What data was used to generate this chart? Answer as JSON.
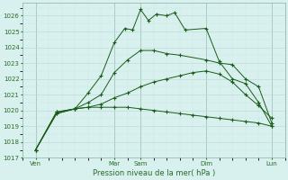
{
  "title": "",
  "xlabel": "Pression niveau de la mer( hPa )",
  "bg_color": "#d8f0ee",
  "grid_major_color": "#c0dcd8",
  "grid_minor_color": "#d0e8e4",
  "line_color": "#1a5c1a",
  "ylim": [
    1017,
    1026.8
  ],
  "yticks": [
    1017,
    1018,
    1019,
    1020,
    1021,
    1022,
    1023,
    1024,
    1025,
    1026
  ],
  "xlim": [
    0,
    10.0
  ],
  "xtick_labels": [
    "Ven",
    "Mar",
    "Sam",
    "Dim",
    "Lun"
  ],
  "xtick_pos": [
    0.5,
    3.5,
    4.5,
    7.0,
    9.5
  ],
  "vlines_x": [
    0.5,
    3.5,
    4.5,
    7.0,
    9.5
  ],
  "lines": [
    {
      "x": [
        0.5,
        1.3,
        2.0,
        2.5,
        3.0,
        3.5,
        3.9,
        4.2,
        4.5,
        4.8,
        5.1,
        5.5,
        5.8,
        6.2,
        7.0,
        7.5,
        8.0,
        8.5,
        9.0,
        9.5
      ],
      "y": [
        1017.5,
        1019.9,
        1020.1,
        1021.1,
        1022.2,
        1024.3,
        1025.2,
        1025.1,
        1026.4,
        1025.7,
        1026.1,
        1026.0,
        1026.2,
        1025.1,
        1025.2,
        1023.1,
        1022.0,
        1021.7,
        1020.5,
        1019.0
      ]
    },
    {
      "x": [
        0.5,
        1.3,
        2.0,
        2.5,
        3.0,
        3.5,
        4.0,
        4.5,
        5.0,
        5.5,
        6.0,
        7.0,
        7.5,
        8.0,
        8.5,
        9.0,
        9.5
      ],
      "y": [
        1017.5,
        1019.9,
        1020.1,
        1020.5,
        1021.0,
        1022.4,
        1023.2,
        1023.8,
        1023.8,
        1023.6,
        1023.5,
        1023.2,
        1023.0,
        1022.9,
        1022.0,
        1021.5,
        1019.2
      ]
    },
    {
      "x": [
        0.5,
        1.3,
        2.0,
        2.5,
        3.0,
        3.5,
        4.0,
        4.5,
        5.0,
        5.5,
        6.0,
        6.5,
        7.0,
        7.5,
        8.0,
        8.5,
        9.0,
        9.5
      ],
      "y": [
        1017.5,
        1019.8,
        1020.1,
        1020.2,
        1020.4,
        1020.8,
        1021.1,
        1021.5,
        1021.8,
        1022.0,
        1022.2,
        1022.4,
        1022.5,
        1022.3,
        1021.8,
        1021.0,
        1020.3,
        1019.5
      ]
    },
    {
      "x": [
        0.5,
        1.3,
        2.0,
        2.5,
        3.0,
        3.5,
        4.0,
        4.5,
        5.0,
        5.5,
        6.0,
        6.5,
        7.0,
        7.5,
        8.0,
        8.5,
        9.0,
        9.5
      ],
      "y": [
        1017.5,
        1019.8,
        1020.1,
        1020.2,
        1020.2,
        1020.2,
        1020.2,
        1020.1,
        1020.0,
        1019.9,
        1019.8,
        1019.7,
        1019.6,
        1019.5,
        1019.4,
        1019.3,
        1019.2,
        1019.0
      ]
    }
  ],
  "figsize": [
    3.2,
    2.0
  ],
  "dpi": 100
}
